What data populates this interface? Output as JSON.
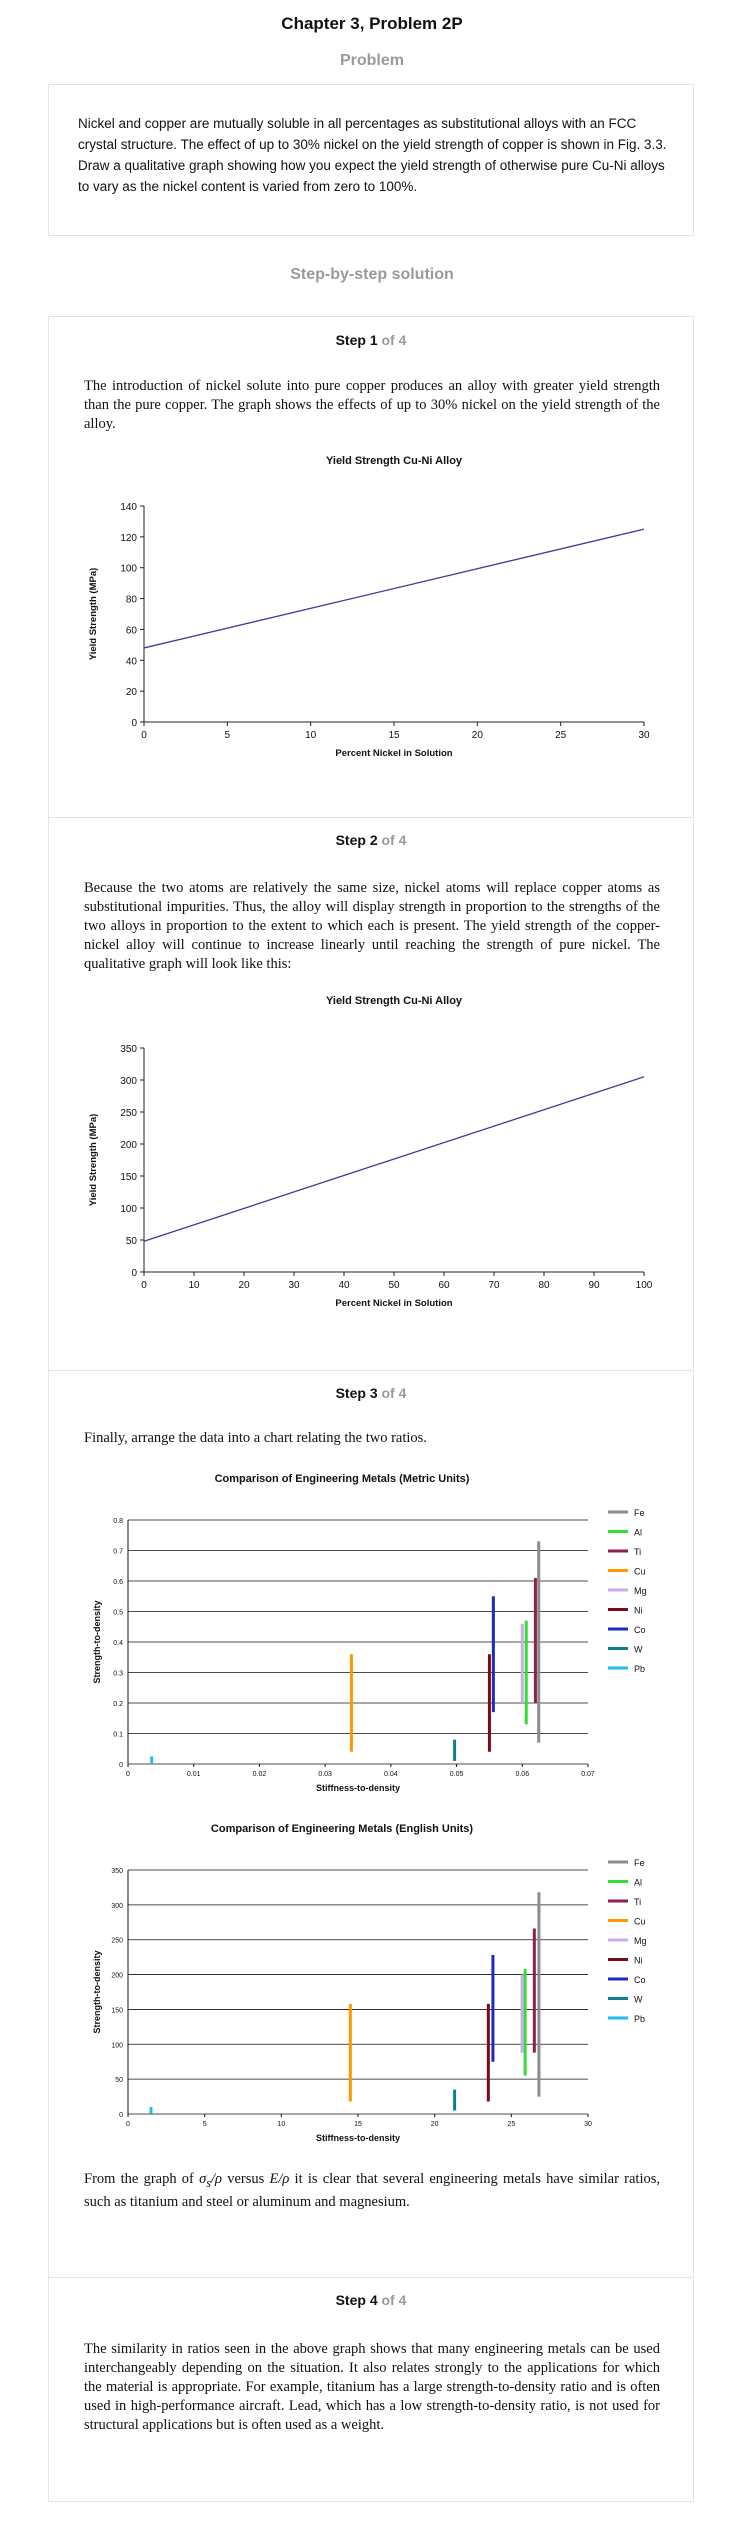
{
  "page": {
    "title": "Chapter 3, Problem 2P",
    "problem_heading": "Problem",
    "problem_text": "Nickel and copper are mutually soluble in all percentages as substitutional alloys with an FCC crystal structure. The effect of up to 30% nickel on the yield strength of copper is shown in Fig. 3.3. Draw a qualitative graph showing how you expect the yield strength of otherwise pure Cu-Ni alloys to vary as the nickel content is varied from zero to 100%.",
    "solution_heading": "Step-by-step solution"
  },
  "steps": [
    {
      "label": "Step 1",
      "of": "of 4",
      "text": "The introduction of nickel solute into pure copper produces an alloy with greater yield strength than the pure copper. The graph shows the effects of up to 30% nickel on the yield strength of the alloy."
    },
    {
      "label": "Step 2",
      "of": "of 4",
      "text": "Because the two atoms are relatively the same size, nickel atoms will replace copper atoms as substitutional impurities. Thus, the alloy will display strength in proportion to the strengths of the two alloys in proportion to the extent to which each is present. The yield strength of the copper-nickel alloy will continue to increase linearly until reaching the strength of pure nickel. The qualitative graph will look like this:"
    },
    {
      "label": "Step 3",
      "of": "of 4",
      "text": "Finally, arrange the data into a chart relating the two ratios.",
      "after_text_pre": "From the graph of",
      "after_sym1": "σ",
      "after_sub": "s",
      "after_sym1b": "/ρ",
      "after_versus": "versus",
      "after_sym2": "E/ρ",
      "after_text_post": "it is clear that several engineering metals have similar ratios, such as titanium and steel or aluminum and magnesium."
    },
    {
      "label": "Step 4",
      "of": "of 4",
      "text": "The similarity in ratios seen in the above graph shows that many engineering metals can be used interchangeably depending on the situation. It also relates strongly to the applications for which the material is appropriate. For example, titanium has a large strength-to-density ratio and is often used in high-performance aircraft. Lead, which has a low strength-to-density ratio, is not used for structural applications but is often used as a weight."
    }
  ],
  "chart_data": [
    {
      "type": "line",
      "title": "Yield Strength Cu-Ni Alloy",
      "xlabel": "Percent Nickel in Solution",
      "ylabel": "Yield Strength (MPa)",
      "x": [
        0,
        30
      ],
      "series": [
        {
          "values": [
            48,
            125
          ],
          "color": "#3b3b9e"
        }
      ],
      "xlim": [
        0,
        30
      ],
      "ylim": [
        0,
        140
      ],
      "xticks": [
        0,
        5,
        10,
        15,
        20,
        25,
        30
      ],
      "yticks": [
        0,
        20,
        40,
        60,
        80,
        100,
        120,
        140
      ],
      "grid": false
    },
    {
      "type": "line",
      "title": "Yield Strength Cu-Ni Alloy",
      "xlabel": "Percent Nickel in Solution",
      "ylabel": "Yield Strength (MPa)",
      "x": [
        0,
        100
      ],
      "series": [
        {
          "values": [
            48,
            305
          ],
          "color": "#3b3b9e"
        }
      ],
      "xlim": [
        0,
        100
      ],
      "ylim": [
        0,
        350
      ],
      "xticks": [
        0,
        10,
        20,
        30,
        40,
        50,
        60,
        70,
        80,
        90,
        100
      ],
      "yticks": [
        0,
        50,
        100,
        150,
        200,
        250,
        300,
        350
      ],
      "grid": false
    },
    {
      "type": "bar",
      "orientation": "range",
      "title": "Comparison of Engineering Metals (Metric Units)",
      "xlabel": "Stiffness-to-density",
      "ylabel": "Strength-to-density",
      "xlim": [
        0,
        0.07
      ],
      "ylim": [
        0,
        0.8
      ],
      "xticks": [
        0,
        0.01,
        0.02,
        0.03,
        0.04,
        0.05,
        0.06,
        0.07
      ],
      "xtick_labels": [
        "0",
        "0.01",
        "0.02",
        "0.03",
        "0.04",
        "0.05",
        "0.06",
        "0.07"
      ],
      "yticks": [
        0,
        0.1,
        0.2,
        0.3,
        0.4,
        0.5,
        0.6,
        0.7,
        0.8
      ],
      "ytick_labels": [
        "0",
        "0.1",
        "0.2",
        "0.3",
        "0.4",
        "0.5",
        "0.6",
        "0.7",
        "0.8"
      ],
      "grid": true,
      "legend": "right",
      "series": [
        {
          "name": "Fe",
          "color": "#8c8c8c",
          "x": 0.0625,
          "low": 0.07,
          "high": 0.73
        },
        {
          "name": "Al",
          "color": "#33dd33",
          "x": 0.0606,
          "low": 0.13,
          "high": 0.47
        },
        {
          "name": "Ti",
          "color": "#8e1f4f",
          "x": 0.062,
          "low": 0.2,
          "high": 0.61
        },
        {
          "name": "Cu",
          "color": "#ff9900",
          "x": 0.034,
          "low": 0.04,
          "high": 0.36
        },
        {
          "name": "Mg",
          "color": "#ccaaee",
          "x": 0.06,
          "low": 0.2,
          "high": 0.46
        },
        {
          "name": "Ni",
          "color": "#7a0a14",
          "x": 0.055,
          "low": 0.04,
          "high": 0.36
        },
        {
          "name": "Co",
          "color": "#1b2bbf",
          "x": 0.0556,
          "low": 0.17,
          "high": 0.55
        },
        {
          "name": "W",
          "color": "#0e7e8a",
          "x": 0.0497,
          "low": 0.01,
          "high": 0.08
        },
        {
          "name": "Pb",
          "color": "#22bbee",
          "x": 0.0036,
          "low": 0.003,
          "high": 0.025
        }
      ]
    },
    {
      "type": "bar",
      "orientation": "range",
      "title": "Comparison of Engineering Metals (English Units)",
      "xlabel": "Stiffness-to-density",
      "ylabel": "Strength-to-density",
      "xlim": [
        0,
        30
      ],
      "ylim": [
        0,
        350
      ],
      "xticks": [
        0,
        5,
        10,
        15,
        20,
        25,
        30
      ],
      "xtick_labels": [
        "0",
        "5",
        "10",
        "15",
        "20",
        "25",
        "30"
      ],
      "yticks": [
        0,
        50,
        100,
        150,
        200,
        250,
        300,
        350
      ],
      "ytick_labels": [
        "0",
        "50",
        "100",
        "150",
        "200",
        "250",
        "300",
        "350"
      ],
      "grid": true,
      "legend": "right",
      "series": [
        {
          "name": "Fe",
          "color": "#8c8c8c",
          "x": 26.8,
          "low": 25,
          "high": 318
        },
        {
          "name": "Al",
          "color": "#33dd33",
          "x": 25.9,
          "low": 55,
          "high": 208
        },
        {
          "name": "Ti",
          "color": "#8e1f4f",
          "x": 26.5,
          "low": 88,
          "high": 266
        },
        {
          "name": "Cu",
          "color": "#ff9900",
          "x": 14.5,
          "low": 18,
          "high": 158
        },
        {
          "name": "Mg",
          "color": "#ccaaee",
          "x": 25.7,
          "low": 88,
          "high": 200
        },
        {
          "name": "Ni",
          "color": "#7a0a14",
          "x": 23.5,
          "low": 18,
          "high": 158
        },
        {
          "name": "Co",
          "color": "#1b2bbf",
          "x": 23.8,
          "low": 75,
          "high": 228
        },
        {
          "name": "W",
          "color": "#0e7e8a",
          "x": 21.3,
          "low": 5,
          "high": 35
        },
        {
          "name": "Pb",
          "color": "#22bbee",
          "x": 1.5,
          "low": 1,
          "high": 10
        }
      ]
    }
  ]
}
